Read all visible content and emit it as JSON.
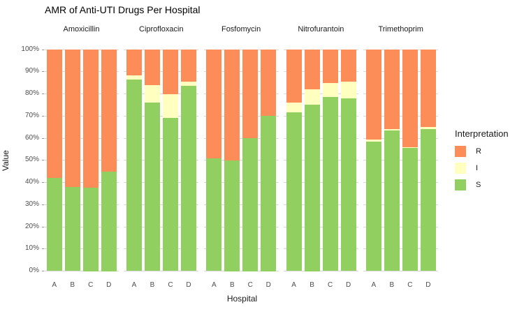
{
  "chart_data": {
    "type": "bar",
    "stacked": true,
    "percent": true,
    "title": "AMR of Anti-UTI Drugs Per Hospital",
    "xlabel": "Hospital",
    "ylabel": "Value",
    "ylim": [
      0,
      100
    ],
    "grid": true,
    "y_ticks": [
      "0%",
      "10%",
      "20%",
      "30%",
      "40%",
      "50%",
      "60%",
      "70%",
      "80%",
      "90%",
      "100%"
    ],
    "categories": [
      "A",
      "B",
      "C",
      "D"
    ],
    "stack_order_bottom_to_top": [
      "S",
      "I",
      "R"
    ],
    "legend": {
      "title": "Interpretation",
      "position": "right",
      "entries": [
        {
          "label": "R",
          "color": "#FC8D59"
        },
        {
          "label": "I",
          "color": "#FFFFBF"
        },
        {
          "label": "S",
          "color": "#91CF60"
        }
      ]
    },
    "facets": [
      {
        "label": "Amoxicillin",
        "series": [
          {
            "name": "S",
            "values": [
              42,
              38,
              37.5,
              45
            ]
          },
          {
            "name": "I",
            "values": [
              0,
              0,
              0,
              0
            ]
          },
          {
            "name": "R",
            "values": [
              58,
              62,
              62.5,
              55
            ]
          }
        ]
      },
      {
        "label": "Ciprofloxacin",
        "series": [
          {
            "name": "S",
            "values": [
              86.5,
              76,
              69,
              83.5
            ]
          },
          {
            "name": "I",
            "values": [
              2,
              8,
              11,
              2
            ]
          },
          {
            "name": "R",
            "values": [
              11.5,
              16,
              20,
              14.5
            ]
          }
        ]
      },
      {
        "label": "Fosfomycin",
        "series": [
          {
            "name": "S",
            "values": [
              51,
              50,
              60,
              70
            ]
          },
          {
            "name": "I",
            "values": [
              0,
              0,
              0,
              0
            ]
          },
          {
            "name": "R",
            "values": [
              49,
              50,
              40,
              30
            ]
          }
        ]
      },
      {
        "label": "Nitrofurantoin",
        "series": [
          {
            "name": "S",
            "values": [
              71.5,
              75,
              78.5,
              78
            ]
          },
          {
            "name": "I",
            "values": [
              4.5,
              7,
              6.5,
              7.5
            ]
          },
          {
            "name": "R",
            "values": [
              24,
              18,
              15,
              14.5
            ]
          }
        ]
      },
      {
        "label": "Trimethoprim",
        "series": [
          {
            "name": "S",
            "values": [
              58.5,
              63.5,
              55.5,
              64
            ]
          },
          {
            "name": "I",
            "values": [
              1,
              0.5,
              0.5,
              1
            ]
          },
          {
            "name": "R",
            "values": [
              40.5,
              36,
              44,
              35
            ]
          }
        ]
      }
    ]
  }
}
